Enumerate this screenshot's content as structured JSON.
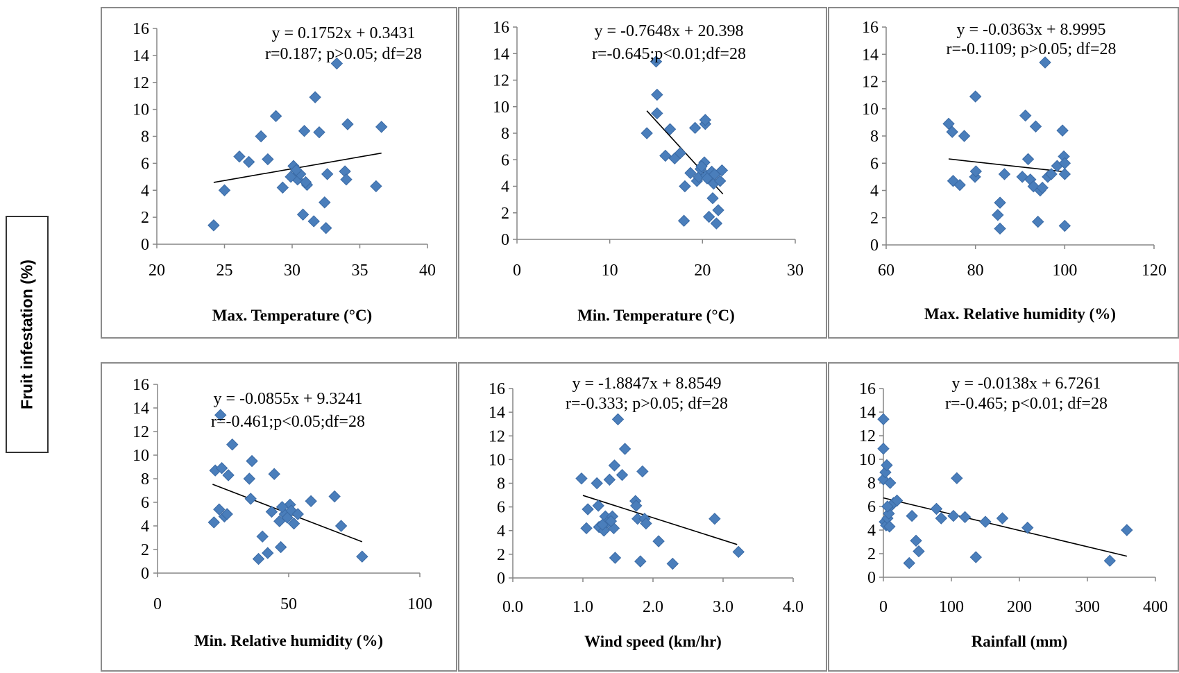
{
  "y_axis_title": "Fruit infestation (%)",
  "colors": {
    "marker": "#4a7ebb",
    "marker_edge": "#3a6aa5",
    "trendline": "#000000",
    "axis": "#868686"
  },
  "chart_data": [
    {
      "type": "scatter",
      "xlabel": "Max. Temperature (°C)",
      "equation": "y = 0.1752x + 0.3431",
      "stats": "r=0.187; p>0.05; df=28",
      "xlim": [
        20,
        40
      ],
      "xticks": [
        20,
        25,
        30,
        35,
        40
      ],
      "xtick_labels": [
        "20",
        "25",
        "30",
        "35",
        "40"
      ],
      "ylim": [
        0,
        16
      ],
      "yticks": [
        0,
        2,
        4,
        6,
        8,
        10,
        12,
        14,
        16
      ],
      "trendline": {
        "slope": 0.1752,
        "intercept": 0.3431,
        "x_range": [
          24.2,
          36.6
        ]
      },
      "x": [
        24.2,
        25.0,
        26.1,
        26.8,
        27.7,
        28.2,
        28.8,
        29.3,
        30.1,
        30.2,
        30.4,
        30.6,
        30.8,
        30.9,
        31.1,
        31.6,
        31.7,
        32.0,
        32.4,
        32.5,
        32.6,
        33.3,
        33.9,
        34.0,
        34.1,
        36.2,
        36.6,
        30.3,
        29.9,
        31.0
      ],
      "y": [
        1.4,
        4.0,
        6.5,
        6.1,
        8.0,
        6.3,
        9.5,
        4.2,
        5.8,
        5.0,
        4.8,
        5.2,
        2.2,
        8.4,
        4.4,
        1.7,
        10.9,
        8.3,
        3.1,
        1.2,
        5.2,
        13.4,
        5.4,
        4.8,
        8.9,
        4.3,
        8.7,
        5.5,
        5.0,
        4.6
      ]
    },
    {
      "type": "scatter",
      "xlabel": "Min.  Temperature  (°C)",
      "equation": "y = -0.7648x + 20.398",
      "stats": "r=-0.645;p<0.01;df=28",
      "xlim": [
        0,
        30
      ],
      "xticks": [
        0,
        10,
        20,
        30
      ],
      "xtick_labels": [
        "0",
        "10",
        "20",
        "30"
      ],
      "ylim": [
        0,
        16
      ],
      "yticks": [
        0,
        2,
        4,
        6,
        8,
        10,
        12,
        14,
        16
      ],
      "trendline": {
        "slope": -0.7648,
        "intercept": 20.398,
        "x_range": [
          14.0,
          22.2
        ]
      },
      "x": [
        14.0,
        15.0,
        15.1,
        15.1,
        16.0,
        16.5,
        17.0,
        17.6,
        18.0,
        18.1,
        18.7,
        19.2,
        19.4,
        19.6,
        19.8,
        20.2,
        20.3,
        20.3,
        20.4,
        20.7,
        21.0,
        21.1,
        21.2,
        21.5,
        21.7,
        21.9,
        22.1,
        19.9,
        20.5,
        21.3
      ],
      "y": [
        8.0,
        13.4,
        10.9,
        9.5,
        6.3,
        8.3,
        6.1,
        6.5,
        1.4,
        4.0,
        5.0,
        8.4,
        4.4,
        4.7,
        5.3,
        5.8,
        8.7,
        9.0,
        4.8,
        1.7,
        5.1,
        3.1,
        4.2,
        1.2,
        2.2,
        4.4,
        5.2,
        5.5,
        4.6,
        4.9
      ]
    },
    {
      "type": "scatter",
      "xlabel": "Max. Relative humidity (%)",
      "equation": "y = -0.0363x + 8.9995",
      "stats": "r=-0.1109; p>0.05; df=28",
      "xlim": [
        60,
        120
      ],
      "xticks": [
        60,
        80,
        100,
        120
      ],
      "xtick_labels": [
        "60",
        "80",
        "100",
        "120"
      ],
      "ylim": [
        0,
        16
      ],
      "yticks": [
        0,
        2,
        4,
        6,
        8,
        10,
        12,
        14,
        16
      ],
      "trendline": {
        "slope": -0.0363,
        "intercept": 8.9995,
        "x_range": [
          74.0,
          100.0
        ]
      },
      "x": [
        74.0,
        74.8,
        75.0,
        76.5,
        77.5,
        79.9,
        80.0,
        80.1,
        85.0,
        85.5,
        85.5,
        86.5,
        90.5,
        91.2,
        91.8,
        92.3,
        93.0,
        93.5,
        94.0,
        94.5,
        95.0,
        95.6,
        96.2,
        97.0,
        98.3,
        99.5,
        99.8,
        100.0,
        100.0,
        100.0
      ],
      "y": [
        8.9,
        8.3,
        4.7,
        4.4,
        8.0,
        5.0,
        10.9,
        5.4,
        2.2,
        3.1,
        1.2,
        5.2,
        5.0,
        9.5,
        6.3,
        4.8,
        4.3,
        8.7,
        1.7,
        4.0,
        4.2,
        13.4,
        5.0,
        5.2,
        5.8,
        8.4,
        6.5,
        6.0,
        5.2,
        1.4
      ]
    },
    {
      "type": "scatter",
      "xlabel": "Min. Relative humidity (%)",
      "equation": "y = -0.0855x + 9.3241",
      "stats": "r=-0.461;p<0.05;df=28",
      "xlim": [
        0,
        100
      ],
      "xticks": [
        0,
        50,
        100
      ],
      "xtick_labels": [
        "0",
        "50",
        "100"
      ],
      "ylim": [
        0,
        16
      ],
      "yticks": [
        0,
        2,
        4,
        6,
        8,
        10,
        12,
        14,
        16
      ],
      "trendline": {
        "slope": -0.0855,
        "intercept": 9.3241,
        "x_range": [
          21.0,
          78.0
        ]
      },
      "x": [
        21.5,
        22.0,
        23.5,
        24.0,
        24.5,
        25.5,
        26.5,
        27.0,
        28.5,
        35.0,
        35.5,
        36.0,
        38.5,
        40.0,
        42.0,
        43.5,
        44.5,
        46.5,
        47.0,
        48.5,
        49.5,
        50.5,
        51.0,
        52.0,
        53.5,
        58.5,
        67.5,
        70.0,
        78.0,
        47.5
      ],
      "y": [
        4.3,
        8.7,
        5.4,
        13.4,
        8.9,
        4.8,
        5.0,
        8.3,
        10.9,
        8.0,
        6.3,
        9.5,
        1.2,
        3.1,
        1.7,
        5.2,
        8.4,
        4.4,
        2.2,
        5.0,
        4.7,
        5.8,
        5.3,
        4.2,
        5.0,
        6.1,
        6.5,
        4.0,
        1.4,
        5.6
      ]
    },
    {
      "type": "scatter",
      "xlabel": "Wind speed (km/hr)",
      "equation": "y = -1.8847x + 8.8549",
      "stats": "r=-0.333; p>0.05; df=28",
      "xlim": [
        0,
        4
      ],
      "xticks": [
        0,
        1,
        2,
        3,
        4
      ],
      "xtick_labels": [
        "0.0",
        "1.0",
        "2.0",
        "3.0",
        "4.0"
      ],
      "ylim": [
        0,
        16
      ],
      "yticks": [
        0,
        2,
        4,
        6,
        8,
        10,
        12,
        14,
        16
      ],
      "trendline": {
        "slope": -1.8847,
        "intercept": 8.8549,
        "x_range": [
          1.0,
          3.2
        ]
      },
      "x": [
        0.98,
        1.05,
        1.07,
        1.2,
        1.22,
        1.23,
        1.3,
        1.32,
        1.35,
        1.38,
        1.42,
        1.44,
        1.45,
        1.46,
        1.5,
        1.56,
        1.6,
        1.75,
        1.76,
        1.78,
        1.82,
        1.85,
        1.88,
        1.9,
        2.08,
        2.28,
        2.88,
        3.22,
        1.28,
        1.4
      ],
      "y": [
        8.4,
        4.2,
        5.8,
        8.0,
        6.1,
        4.3,
        4.0,
        5.2,
        4.7,
        8.3,
        5.2,
        4.2,
        9.5,
        1.7,
        13.4,
        8.7,
        10.9,
        6.5,
        6.1,
        5.0,
        1.4,
        9.0,
        5.0,
        4.6,
        3.1,
        1.2,
        5.0,
        2.2,
        4.5,
        4.8
      ]
    },
    {
      "type": "scatter",
      "xlabel": "Rainfall (mm)",
      "equation": "y = -0.0138x + 6.7261",
      "stats": "r=-0.465; p<0.01; df=28",
      "xlim": [
        0,
        400
      ],
      "xticks": [
        0,
        100,
        200,
        300,
        400
      ],
      "xtick_labels": [
        "0",
        "100",
        "200",
        "300",
        "400"
      ],
      "ylim": [
        0,
        16
      ],
      "yticks": [
        0,
        2,
        4,
        6,
        8,
        10,
        12,
        14,
        16
      ],
      "trendline": {
        "slope": -0.0138,
        "intercept": 6.7261,
        "x_range": [
          0,
          358
        ]
      },
      "x": [
        0,
        0,
        0,
        2,
        3,
        4,
        5,
        6,
        8,
        9,
        10,
        12,
        15,
        20,
        38,
        42,
        48,
        52,
        78,
        85,
        103,
        108,
        120,
        136,
        150,
        175,
        212,
        333,
        358,
        6
      ],
      "y": [
        13.4,
        10.9,
        8.3,
        4.7,
        8.9,
        4.4,
        9.5,
        5.0,
        5.4,
        4.3,
        8.0,
        6.1,
        6.3,
        6.5,
        1.2,
        5.2,
        3.1,
        2.2,
        5.8,
        5.0,
        5.2,
        8.4,
        5.1,
        1.7,
        4.7,
        5.0,
        4.2,
        1.4,
        4.0,
        6.0
      ]
    }
  ]
}
